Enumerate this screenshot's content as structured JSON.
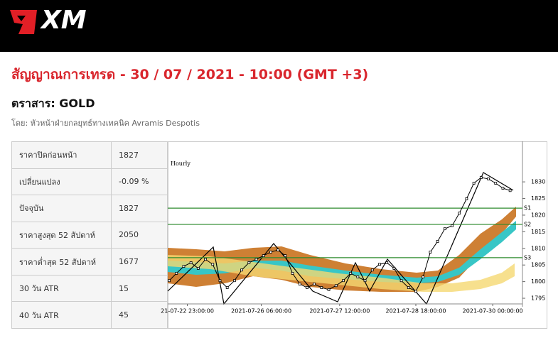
{
  "header": {
    "logo": "XM"
  },
  "title": "สัญญาณการเทรด - 30 / 07 / 2021 - 10:00 (GMT +3)",
  "instrument": "ตราสาร: GOLD",
  "author": "โดย: หัวหน้าฝ่ายกลยุทธ์ทางเทคนิค Avramis Despotis",
  "table": {
    "rows": [
      [
        "ราคาปิดก่อนหน้า",
        "1827"
      ],
      [
        "เปลี่ยนแปลง",
        "-0.09 %"
      ],
      [
        "ปัจจุบัน",
        "1827"
      ],
      [
        "ราคาสูงสุด 52 สัปดาห์",
        "2050"
      ],
      [
        "ราคาต่ำสุด 52 สัปดาห์",
        "1677"
      ],
      [
        "30 วัน ATR",
        "15"
      ],
      [
        "40 วัน ATR",
        "45"
      ]
    ]
  },
  "chart_data": {
    "type": "line",
    "timeframe": "Hourly",
    "color": "#000000",
    "values": [
      1800.3,
      1802.5,
      1804.6,
      1805.7,
      1804,
      1806.7,
      1805.2,
      1800.3,
      1798.2,
      1800.3,
      1803.5,
      1805.7,
      1806.7,
      1807.8,
      1808.9,
      1809.5,
      1807.8,
      1802.5,
      1799.3,
      1798.2,
      1799.3,
      1798.2,
      1797.6,
      1798.8,
      1800.3,
      1802.5,
      1801.4,
      1800.3,
      1803.5,
      1805.2,
      1805.7,
      1804,
      1800.3,
      1798.2,
      1797.1,
      1801.4,
      1808.9,
      1812.1,
      1815.9,
      1816.8,
      1820.6,
      1824.9,
      1829.6,
      1831.3,
      1830.9,
      1829.6,
      1828.1,
      1827.4
    ],
    "xlim": [
      -0.2,
      48.7
    ],
    "xticks": [
      {
        "value": 2.5,
        "label": "21-07-22 23:00:00"
      },
      {
        "value": 12.7,
        "label": "2021-07-26 06:00:00"
      },
      {
        "value": 23.5,
        "label": "2021-07-27 12:00:00"
      },
      {
        "value": 34,
        "label": "2021-07-28 18:00:00"
      },
      {
        "value": 44.6,
        "label": "2021-07-30 00:00:00"
      }
    ],
    "ylim": [
      1793.3,
      1842.2
    ],
    "yticks": [
      1795,
      1800,
      1805,
      1810,
      1815,
      1820,
      1825,
      1830
    ],
    "levels": [
      {
        "name": "S1",
        "value": 1822.1,
        "color": "#2e8b2e"
      },
      {
        "name": "S2",
        "value": 1817.2,
        "color": "#2e8b2e"
      },
      {
        "name": "S3",
        "value": 1807.2,
        "color": "#2e8b2e"
      }
    ]
  }
}
